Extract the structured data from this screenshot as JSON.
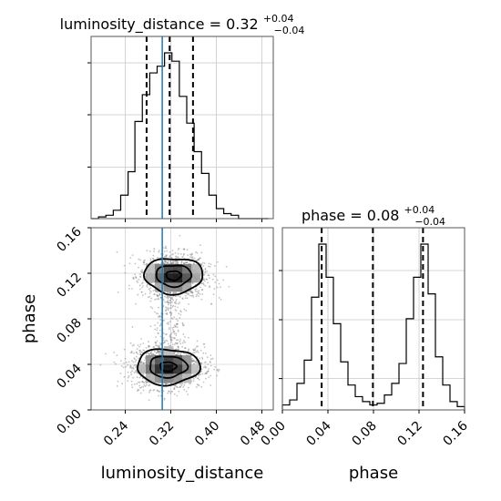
{
  "chart_data": {
    "type": "corner",
    "parameters": [
      "luminosity_distance",
      "phase"
    ],
    "truth": {
      "luminosity_distance": 0.305
    },
    "panels": [
      {
        "id": "hist-luminosity_distance",
        "type": "histogram",
        "title_main": "luminosity_distance = 0.32",
        "title_sup": "+0.04",
        "title_sub": "−0.04",
        "xlim": [
          0.18,
          0.5
        ],
        "grid": true,
        "quantiles": [
          0.2775,
          0.318,
          0.359
        ],
        "bin_edges": [
          0.18,
          0.193,
          0.206,
          0.219,
          0.232,
          0.245,
          0.257,
          0.27,
          0.283,
          0.296,
          0.309,
          0.322,
          0.335,
          0.348,
          0.361,
          0.374,
          0.387,
          0.4,
          0.413,
          0.426,
          0.439,
          0.452,
          0.465,
          0.478,
          0.491
        ],
        "counts": [
          0,
          1,
          2,
          5,
          14,
          28,
          58,
          74,
          87,
          91,
          99,
          94,
          73,
          57,
          40,
          27,
          14,
          6,
          3,
          2,
          0,
          0,
          0,
          0
        ]
      },
      {
        "id": "hist-phase",
        "type": "histogram",
        "title_main": "phase = 0.08",
        "title_sup": "+0.04",
        "title_sub": "−0.04",
        "xlim": [
          0.0,
          0.16
        ],
        "xlabel": "phase",
        "xticks": [
          "0.00",
          "0.04",
          "0.08",
          "0.12",
          "0.16"
        ],
        "xtick_values": [
          0.0,
          0.04,
          0.08,
          0.12,
          0.16
        ],
        "grid": true,
        "quantiles": [
          0.0345,
          0.0795,
          0.1235
        ],
        "bin_edges": [
          0.0,
          0.0064,
          0.0128,
          0.0192,
          0.0256,
          0.032,
          0.0384,
          0.0448,
          0.0512,
          0.0576,
          0.064,
          0.0704,
          0.0768,
          0.0832,
          0.0896,
          0.096,
          0.1024,
          0.1088,
          0.1152,
          0.1216,
          0.128,
          0.1344,
          0.1408,
          0.1472,
          0.1536,
          0.16
        ],
        "counts": [
          3,
          6,
          16,
          30,
          68,
          100,
          80,
          52,
          29,
          15,
          8,
          5,
          3,
          4,
          9,
          16,
          28,
          55,
          80,
          100,
          70,
          32,
          15,
          5,
          2
        ]
      },
      {
        "id": "2d-phase-vs-luminosity_distance",
        "type": "2d-density",
        "xlim": [
          0.18,
          0.5
        ],
        "ylim": [
          0.0,
          0.16
        ],
        "xlabel": "luminosity_distance",
        "ylabel": "phase",
        "xticks": [
          "0.24",
          "0.32",
          "0.40",
          "0.48"
        ],
        "xtick_values": [
          0.24,
          0.32,
          0.4,
          0.48
        ],
        "yticks": [
          "0.00",
          "0.04",
          "0.08",
          "0.12",
          "0.16"
        ],
        "ytick_values": [
          0.0,
          0.04,
          0.08,
          0.12,
          0.16
        ],
        "grid": true,
        "modes": [
          {
            "x": 0.325,
            "y": 0.118,
            "sx": 0.028,
            "sy": 0.0085
          },
          {
            "x": 0.315,
            "y": 0.038,
            "sx": 0.03,
            "sy": 0.0085
          }
        ],
        "contour_levels": 3
      }
    ]
  }
}
